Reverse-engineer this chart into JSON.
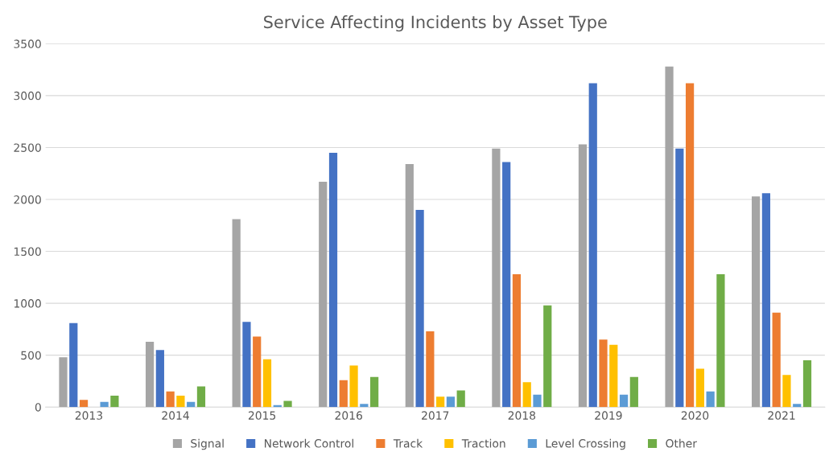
{
  "chart_data": {
    "type": "bar",
    "title": "Service Affecting Incidents by Asset Type",
    "categories": [
      "2013",
      "2014",
      "2015",
      "2016",
      "2017",
      "2018",
      "2019",
      "2020",
      "2021"
    ],
    "series": [
      {
        "name": "Signal",
        "color": "#a5a5a5",
        "values": [
          480,
          630,
          1810,
          2170,
          2340,
          2490,
          2530,
          3280,
          2030
        ]
      },
      {
        "name": "Network Control",
        "color": "#4472c4",
        "values": [
          810,
          550,
          820,
          2450,
          1900,
          2360,
          3120,
          2490,
          2060
        ]
      },
      {
        "name": "Track",
        "color": "#ed7d31",
        "values": [
          70,
          150,
          680,
          260,
          730,
          1280,
          650,
          3120,
          910
        ]
      },
      {
        "name": "Traction",
        "color": "#ffc000",
        "values": [
          0,
          110,
          460,
          400,
          100,
          240,
          600,
          370,
          310
        ]
      },
      {
        "name": "Level Crossing",
        "color": "#5b9bd5",
        "values": [
          50,
          50,
          20,
          30,
          100,
          120,
          120,
          150,
          30
        ]
      },
      {
        "name": "Other",
        "color": "#70ad47",
        "values": [
          110,
          200,
          60,
          290,
          160,
          980,
          290,
          1280,
          450
        ]
      }
    ],
    "ylim": [
      0,
      3500
    ],
    "yticks": [
      0,
      500,
      1000,
      1500,
      2000,
      2500,
      3000,
      3500
    ],
    "grid": "y",
    "legend": "bottom"
  }
}
